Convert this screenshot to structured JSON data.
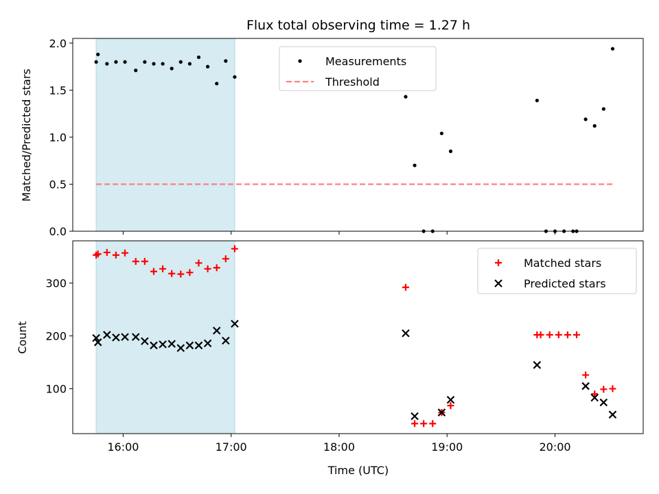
{
  "colors": {
    "shade": "#add8e6",
    "measurement": "#000000",
    "threshold": "#ff7f7f",
    "matched": "#ff0000",
    "predicted": "#000000"
  },
  "chart_data": [
    {
      "type": "scatter",
      "title": "Flux total observing time = 1.27 h",
      "xlabel": "",
      "ylabel": "Matched/Predicted stars",
      "xlim": [
        "15:32",
        "20:49"
      ],
      "ylim": [
        0,
        2.05
      ],
      "yticks": [
        0.0,
        0.5,
        1.0,
        1.5,
        2.0
      ],
      "ytick_labels": [
        "0.0",
        "0.5",
        "1.0",
        "1.5",
        "2.0"
      ],
      "xticks": [
        "16:00",
        "17:00",
        "18:00",
        "19:00",
        "20:00"
      ],
      "shaded_span": [
        "15:45",
        "17:02"
      ],
      "legend": {
        "placement": "upper center",
        "entries": [
          "Measurements",
          "Threshold"
        ]
      },
      "threshold": {
        "name": "Threshold",
        "y": 0.5,
        "x_range": [
          "15:45",
          "20:32"
        ]
      },
      "series": [
        {
          "name": "Measurements",
          "marker": "dot",
          "points": [
            [
              "15:45",
              1.8
            ],
            [
              "15:46",
              1.88
            ],
            [
              "15:51",
              1.78
            ],
            [
              "15:56",
              1.8
            ],
            [
              "16:01",
              1.8
            ],
            [
              "16:07",
              1.71
            ],
            [
              "16:12",
              1.8
            ],
            [
              "16:17",
              1.78
            ],
            [
              "16:22",
              1.78
            ],
            [
              "16:27",
              1.73
            ],
            [
              "16:32",
              1.8
            ],
            [
              "16:37",
              1.78
            ],
            [
              "16:42",
              1.85
            ],
            [
              "16:47",
              1.75
            ],
            [
              "16:52",
              1.57
            ],
            [
              "16:57",
              1.81
            ],
            [
              "17:02",
              1.64
            ],
            [
              "18:37",
              1.43
            ],
            [
              "18:42",
              0.7
            ],
            [
              "18:47",
              0.0
            ],
            [
              "18:52",
              0.0
            ],
            [
              "18:57",
              1.04
            ],
            [
              "19:02",
              0.85
            ],
            [
              "19:50",
              1.39
            ],
            [
              "19:55",
              0.0
            ],
            [
              "20:00",
              0.0
            ],
            [
              "20:05",
              0.0
            ],
            [
              "20:10",
              0.0
            ],
            [
              "20:12",
              0.0
            ],
            [
              "20:17",
              1.19
            ],
            [
              "20:22",
              1.12
            ],
            [
              "20:27",
              1.3
            ],
            [
              "20:32",
              1.94
            ]
          ]
        }
      ]
    },
    {
      "type": "scatter",
      "title": "",
      "xlabel": "Time (UTC)",
      "ylabel": "Count",
      "xlim": [
        "15:32",
        "20:49"
      ],
      "ylim": [
        15,
        380
      ],
      "yticks": [
        100,
        200,
        300
      ],
      "ytick_labels": [
        "100",
        "200",
        "300"
      ],
      "xticks": [
        "16:00",
        "17:00",
        "18:00",
        "19:00",
        "20:00"
      ],
      "xtick_labels": [
        "16:00",
        "17:00",
        "18:00",
        "19:00",
        "20:00"
      ],
      "shaded_span": [
        "15:45",
        "17:02"
      ],
      "legend": {
        "placement": "upper right",
        "entries": [
          "Matched stars",
          "Predicted stars"
        ]
      },
      "series": [
        {
          "name": "Matched stars",
          "marker": "plus",
          "points": [
            [
              "15:45",
              353
            ],
            [
              "15:46",
              355
            ],
            [
              "15:51",
              358
            ],
            [
              "15:56",
              353
            ],
            [
              "16:01",
              357
            ],
            [
              "16:07",
              341
            ],
            [
              "16:12",
              341
            ],
            [
              "16:17",
              322
            ],
            [
              "16:22",
              327
            ],
            [
              "16:27",
              318
            ],
            [
              "16:32",
              317
            ],
            [
              "16:37",
              320
            ],
            [
              "16:42",
              338
            ],
            [
              "16:47",
              327
            ],
            [
              "16:52",
              329
            ],
            [
              "16:57",
              346
            ],
            [
              "17:02",
              365
            ],
            [
              "18:37",
              292
            ],
            [
              "18:42",
              34
            ],
            [
              "18:47",
              34
            ],
            [
              "18:52",
              34
            ],
            [
              "18:57",
              55
            ],
            [
              "19:02",
              68
            ],
            [
              "19:50",
              202
            ],
            [
              "19:52",
              202
            ],
            [
              "19:57",
              202
            ],
            [
              "20:02",
              202
            ],
            [
              "20:07",
              202
            ],
            [
              "20:12",
              202
            ],
            [
              "20:17",
              126
            ],
            [
              "20:22",
              90
            ],
            [
              "20:27",
              99
            ],
            [
              "20:32",
              100
            ]
          ]
        },
        {
          "name": "Predicted stars",
          "marker": "x",
          "points": [
            [
              "15:45",
              196
            ],
            [
              "15:46",
              188
            ],
            [
              "15:51",
              202
            ],
            [
              "15:56",
              197
            ],
            [
              "16:01",
              198
            ],
            [
              "16:07",
              198
            ],
            [
              "16:12",
              190
            ],
            [
              "16:17",
              182
            ],
            [
              "16:22",
              184
            ],
            [
              "16:27",
              185
            ],
            [
              "16:32",
              177
            ],
            [
              "16:37",
              182
            ],
            [
              "16:42",
              182
            ],
            [
              "16:47",
              186
            ],
            [
              "16:52",
              210
            ],
            [
              "16:57",
              191
            ],
            [
              "17:02",
              223
            ],
            [
              "18:37",
              205
            ],
            [
              "18:42",
              48
            ],
            [
              "18:57",
              55
            ],
            [
              "19:02",
              79
            ],
            [
              "19:50",
              145
            ],
            [
              "20:17",
              105
            ],
            [
              "20:22",
              83
            ],
            [
              "20:27",
              74
            ],
            [
              "20:32",
              51
            ]
          ]
        }
      ]
    }
  ]
}
